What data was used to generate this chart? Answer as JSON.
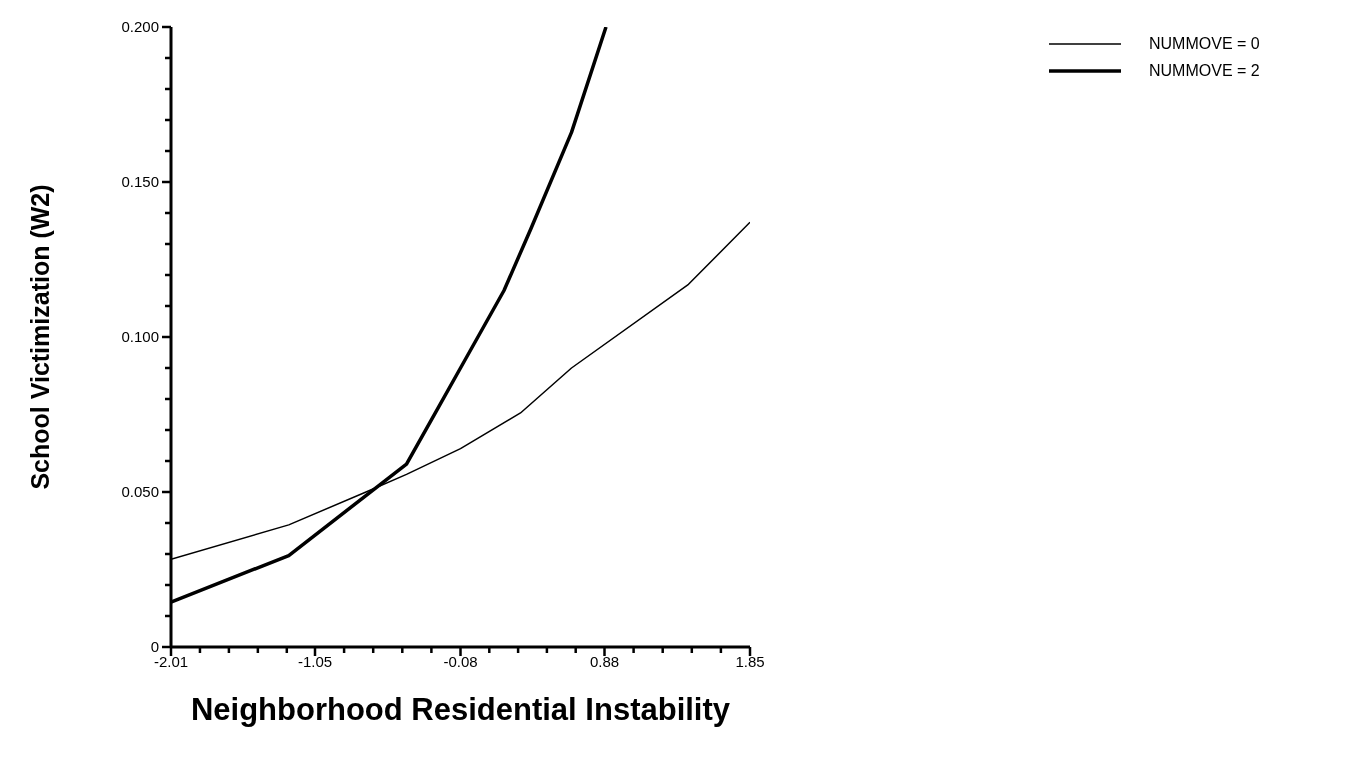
{
  "chart_data": {
    "type": "line",
    "xlabel": "Neighborhood Residential Instability",
    "ylabel": "School Victimization (W2)",
    "xlim": [
      -2.01,
      1.85
    ],
    "ylim": [
      0,
      0.2
    ],
    "xticks": [
      -2.01,
      {
        "value": -1.817,
        "label": null
      },
      {
        "value": -1.624,
        "label": null
      },
      {
        "value": -1.431,
        "label": null
      },
      {
        "value": -1.238,
        "label": null
      },
      -1.05,
      {
        "value": -0.856,
        "label": null
      },
      {
        "value": -0.662,
        "label": null
      },
      {
        "value": -0.468,
        "label": null
      },
      {
        "value": -0.274,
        "label": null
      },
      -0.08,
      {
        "value": 0.112,
        "label": null
      },
      {
        "value": 0.304,
        "label": null
      },
      {
        "value": 0.496,
        "label": null
      },
      {
        "value": 0.688,
        "label": null
      },
      0.88,
      {
        "value": 1.074,
        "label": null
      },
      {
        "value": 1.268,
        "label": null
      },
      {
        "value": 1.462,
        "label": null
      },
      {
        "value": 1.656,
        "label": null
      },
      1.85
    ],
    "yticks": [
      {
        "value": 0,
        "label": "0"
      },
      {
        "value": 0.01,
        "label": null
      },
      {
        "value": 0.02,
        "label": null
      },
      {
        "value": 0.03,
        "label": null
      },
      {
        "value": 0.04,
        "label": null
      },
      {
        "value": 0.05,
        "label": "0.050"
      },
      {
        "value": 0.06,
        "label": null
      },
      {
        "value": 0.07,
        "label": null
      },
      {
        "value": 0.08,
        "label": null
      },
      {
        "value": 0.09,
        "label": null
      },
      {
        "value": 0.1,
        "label": "0.100"
      },
      {
        "value": 0.11,
        "label": null
      },
      {
        "value": 0.12,
        "label": null
      },
      {
        "value": 0.13,
        "label": null
      },
      {
        "value": 0.14,
        "label": null
      },
      {
        "value": 0.15,
        "label": "0.150"
      },
      {
        "value": 0.16,
        "label": null
      },
      {
        "value": 0.17,
        "label": null
      },
      {
        "value": 0.18,
        "label": null
      },
      {
        "value": 0.19,
        "label": null
      },
      {
        "value": 0.2,
        "label": "0.200"
      }
    ],
    "grid": false,
    "legend": "top right",
    "marker": "none",
    "line_style": "solid",
    "series": [
      {
        "name": "NUMMOVE = 0",
        "color": "#000000",
        "x": [
          -2.01,
          -1.225,
          -0.71,
          -0.44,
          -0.08,
          0.32,
          0.66,
          1.44,
          1.85
        ],
        "values": [
          0.0283,
          0.0394,
          0.05,
          0.0557,
          0.064,
          0.0755,
          0.09,
          0.117,
          0.137
        ]
      },
      {
        "name": "NUMMOVE = 2",
        "color": "#000000",
        "x": [
          -2.01,
          -1.225,
          -0.44,
          -0.26,
          -0.08,
          0.21,
          0.39,
          0.66,
          0.89
        ],
        "values": [
          0.0145,
          0.0295,
          0.059,
          0.0745,
          0.09,
          0.115,
          0.135,
          0.166,
          0.2
        ]
      }
    ]
  }
}
